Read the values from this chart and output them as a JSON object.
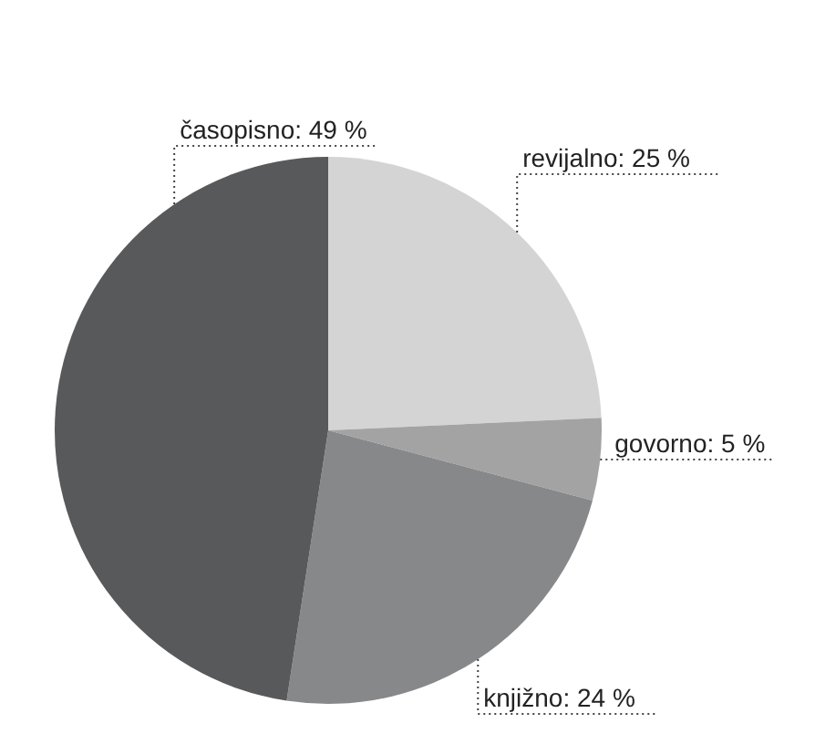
{
  "chart_data": {
    "type": "pie",
    "categories": [
      "revijalno",
      "govorno",
      "knjižno",
      "časopisno"
    ],
    "values": [
      25,
      5,
      24,
      49
    ],
    "colors": [
      "#d4d4d4",
      "#a3a3a3",
      "#87888a",
      "#58595b"
    ],
    "value_labels": [
      "25 %",
      "5 %",
      "24 %",
      "49 %"
    ]
  }
}
